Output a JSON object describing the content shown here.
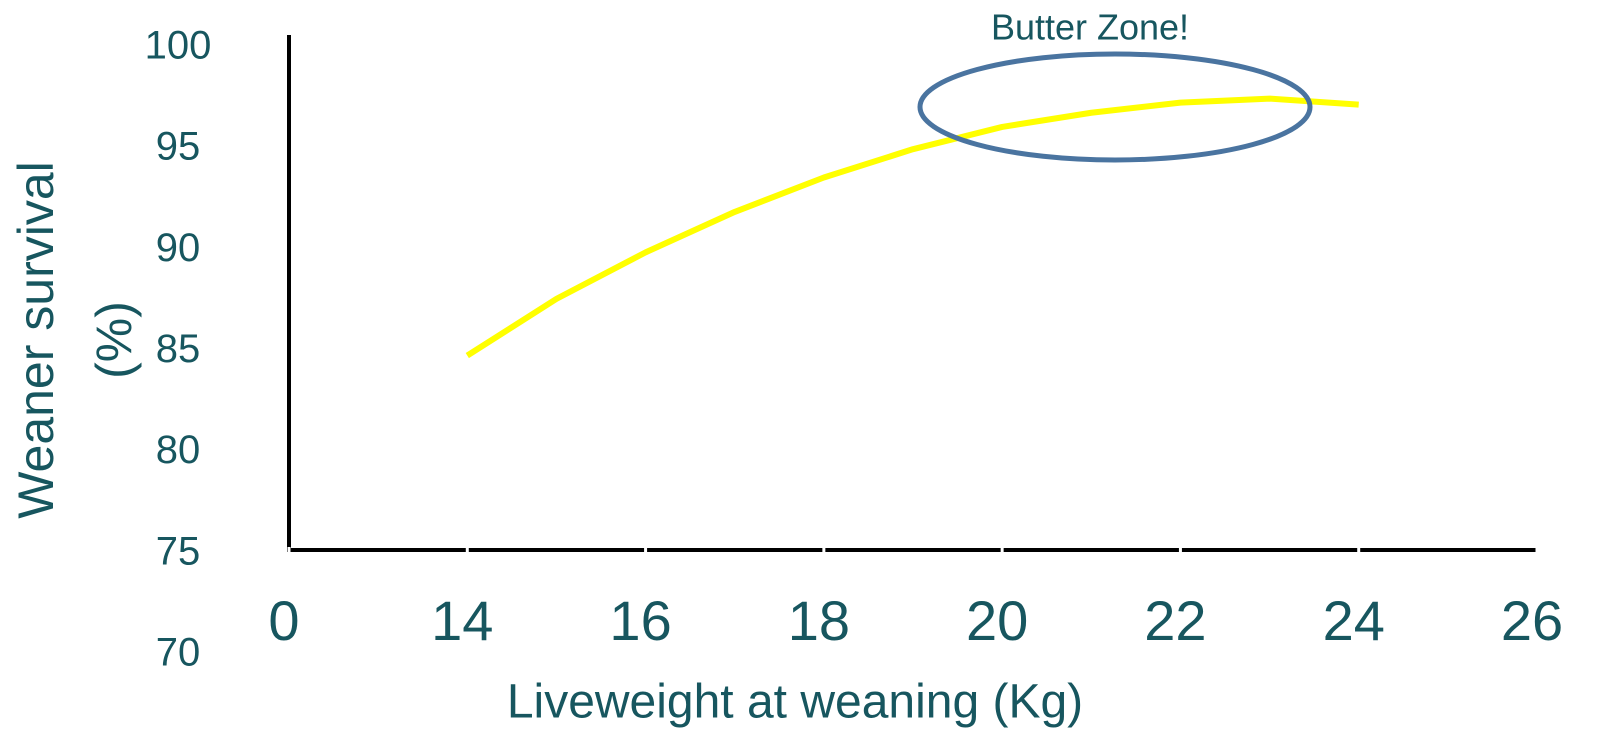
{
  "chart_data": {
    "type": "line",
    "x_label": "Liveweight at weaning (Kg)",
    "y_label": "Weaner survival (%)",
    "annotation": "Butter Zone!",
    "x": [
      14,
      15,
      16,
      17,
      18,
      19,
      20,
      21,
      22,
      23,
      24
    ],
    "series": [
      {
        "name": "Weaner survival",
        "color": "#ffff00",
        "values": [
          84.8,
          87.6,
          89.9,
          91.9,
          93.6,
          95.0,
          96.1,
          96.8,
          97.3,
          97.5,
          97.2
        ]
      }
    ],
    "xlim": [
      12,
      26
    ],
    "xticks": [
      {
        "value": 12,
        "label": "0"
      },
      14,
      16,
      18,
      20,
      22,
      24,
      26
    ],
    "ylim": [
      70,
      100
    ],
    "yticks": [
      70,
      75,
      80,
      85,
      90,
      95,
      100
    ],
    "grid": false
  }
}
